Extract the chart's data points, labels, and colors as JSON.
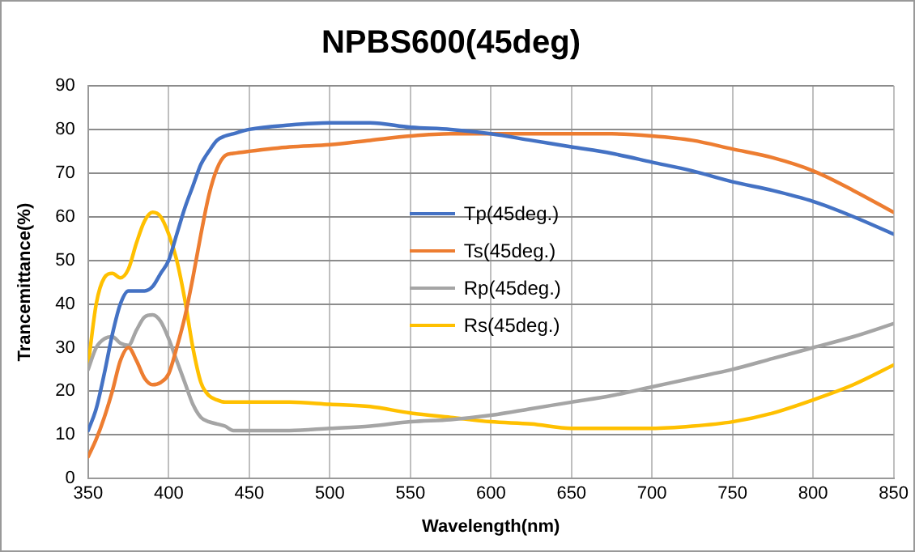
{
  "chart_data": {
    "type": "line",
    "title": "NPBS600(45deg)",
    "xlabel": "Wavelength(nm)",
    "ylabel": "Trancemittance(%)",
    "x": [
      350,
      355,
      360,
      365,
      370,
      375,
      380,
      385,
      390,
      395,
      400,
      405,
      410,
      415,
      420,
      425,
      430,
      435,
      440,
      450,
      475,
      500,
      525,
      550,
      575,
      600,
      625,
      650,
      675,
      700,
      725,
      750,
      775,
      800,
      825,
      850
    ],
    "series": [
      {
        "name": "Tp(45deg.)",
        "color": "#4472c4",
        "values": [
          11,
          16,
          24,
          33,
          40,
          43,
          43,
          43,
          44,
          47,
          50,
          56,
          62,
          67,
          72,
          75,
          77.5,
          78.5,
          79,
          80,
          81,
          81.5,
          81.5,
          80.5,
          80,
          79,
          77.5,
          76,
          74.5,
          72.5,
          70.5,
          68,
          66,
          63.5,
          60,
          56
        ]
      },
      {
        "name": "Ts(45deg.)",
        "color": "#ed7d31",
        "values": [
          5,
          9,
          14,
          20,
          27,
          30,
          27,
          23,
          21.5,
          22,
          24,
          30,
          37,
          46,
          56,
          65,
          71,
          74,
          74.5,
          75,
          76,
          76.5,
          77.5,
          78.5,
          79,
          79,
          79,
          79,
          79,
          78.5,
          77.5,
          75.5,
          73.5,
          70.5,
          66,
          61
        ]
      },
      {
        "name": "Rp(45deg.)",
        "color": "#a5a5a5",
        "values": [
          25,
          30,
          32,
          32.5,
          31,
          30.5,
          34,
          37,
          37.5,
          36,
          32,
          27,
          22,
          17,
          14,
          13,
          12.5,
          12,
          11,
          11,
          11,
          11.5,
          12,
          13,
          13.5,
          14.5,
          16,
          17.5,
          19,
          21,
          23,
          25,
          27.5,
          30,
          32.5,
          35.5
        ]
      },
      {
        "name": "Rs(45deg.)",
        "color": "#ffc000",
        "values": [
          26,
          40,
          46,
          47,
          46,
          48,
          54,
          59,
          61,
          60,
          56,
          50,
          41,
          30,
          22,
          19,
          18,
          17.5,
          17.5,
          17.5,
          17.5,
          17,
          16.5,
          15,
          14,
          13,
          12.5,
          11.5,
          11.5,
          11.5,
          12,
          13,
          15,
          18,
          21.5,
          26
        ]
      }
    ],
    "xlim": [
      350,
      850
    ],
    "xticks": [
      350,
      400,
      450,
      500,
      550,
      600,
      650,
      700,
      750,
      800,
      850
    ],
    "ylim": [
      0,
      90
    ],
    "yticks": [
      0,
      10,
      20,
      30,
      40,
      50,
      60,
      70,
      80,
      90
    ],
    "grid": true,
    "legend": "center",
    "marker": "none",
    "line_style": "solid"
  }
}
